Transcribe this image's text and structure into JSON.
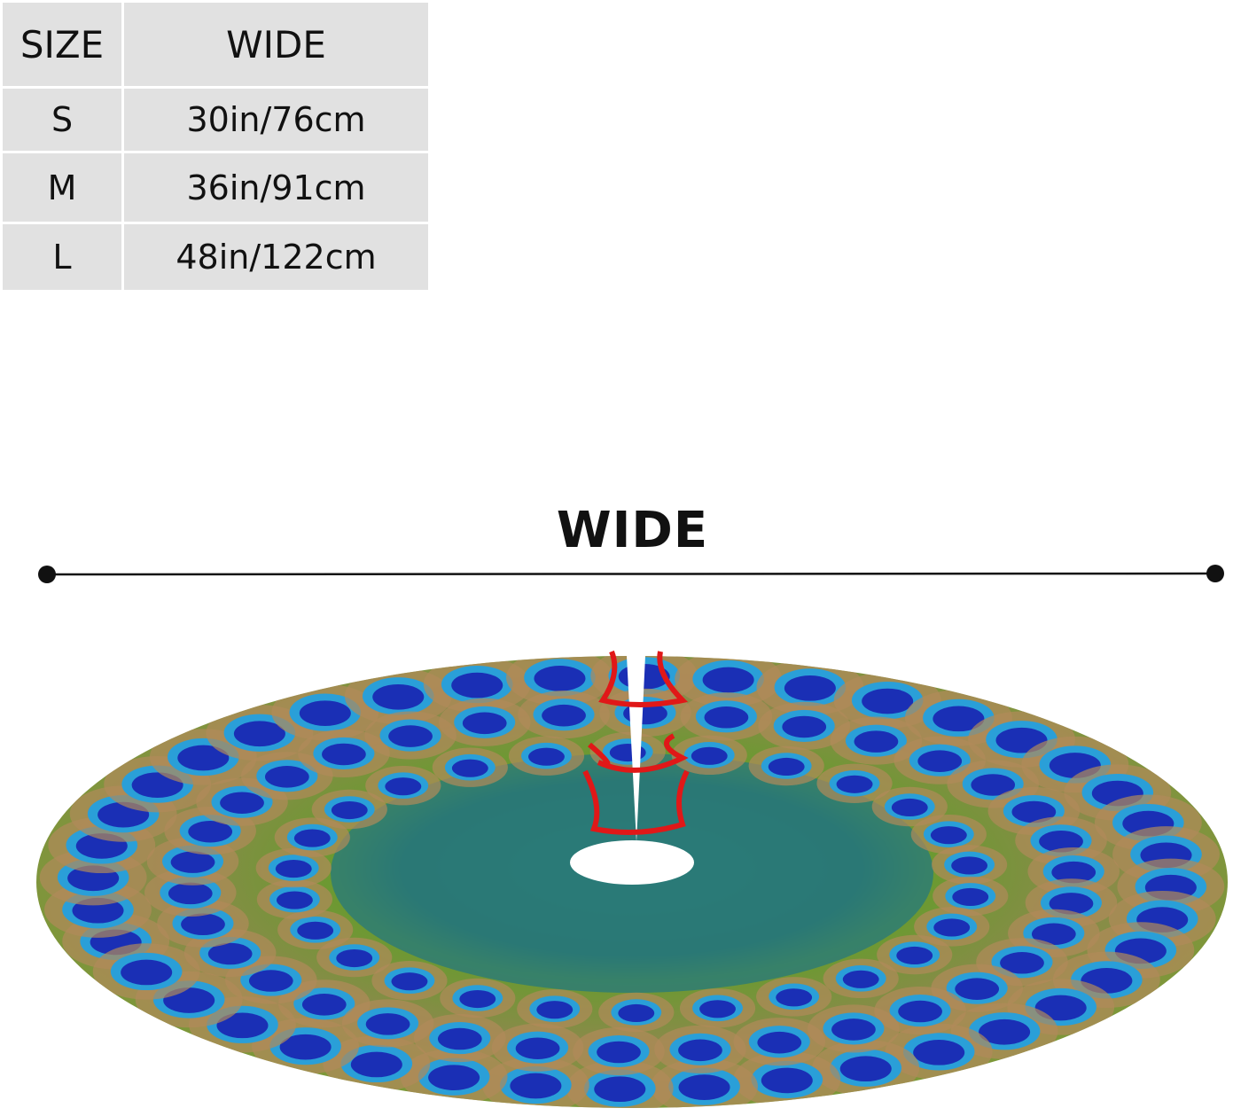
{
  "size_table": {
    "headers": [
      "SIZE",
      "WIDE"
    ],
    "rows": [
      {
        "size": "S",
        "wide": "30in/76cm"
      },
      {
        "size": "M",
        "wide": "36in/91cm"
      },
      {
        "size": "L",
        "wide": "48in/122cm"
      }
    ]
  },
  "diagram": {
    "dimension_label": "WIDE"
  },
  "product": {
    "pattern": "peacock feathers",
    "colors": {
      "feather_blue": "#1a2fb5",
      "eye_ring": "#2a9fd8",
      "green": "#5f9a2a",
      "bronze": "#b08a5a",
      "teal": "#2a7a78",
      "tie_ribbon": "#e01818"
    }
  }
}
